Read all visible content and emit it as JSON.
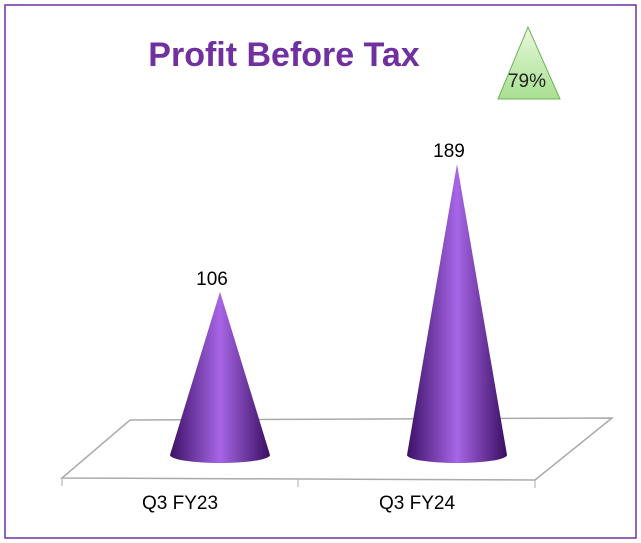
{
  "chart_data": {
    "type": "cone",
    "title": "Profit Before Tax",
    "annotation": "79%",
    "categories": [
      "Q3 FY23",
      "Q3 FY24"
    ],
    "values": [
      106,
      189
    ],
    "color": "#7030a0"
  }
}
